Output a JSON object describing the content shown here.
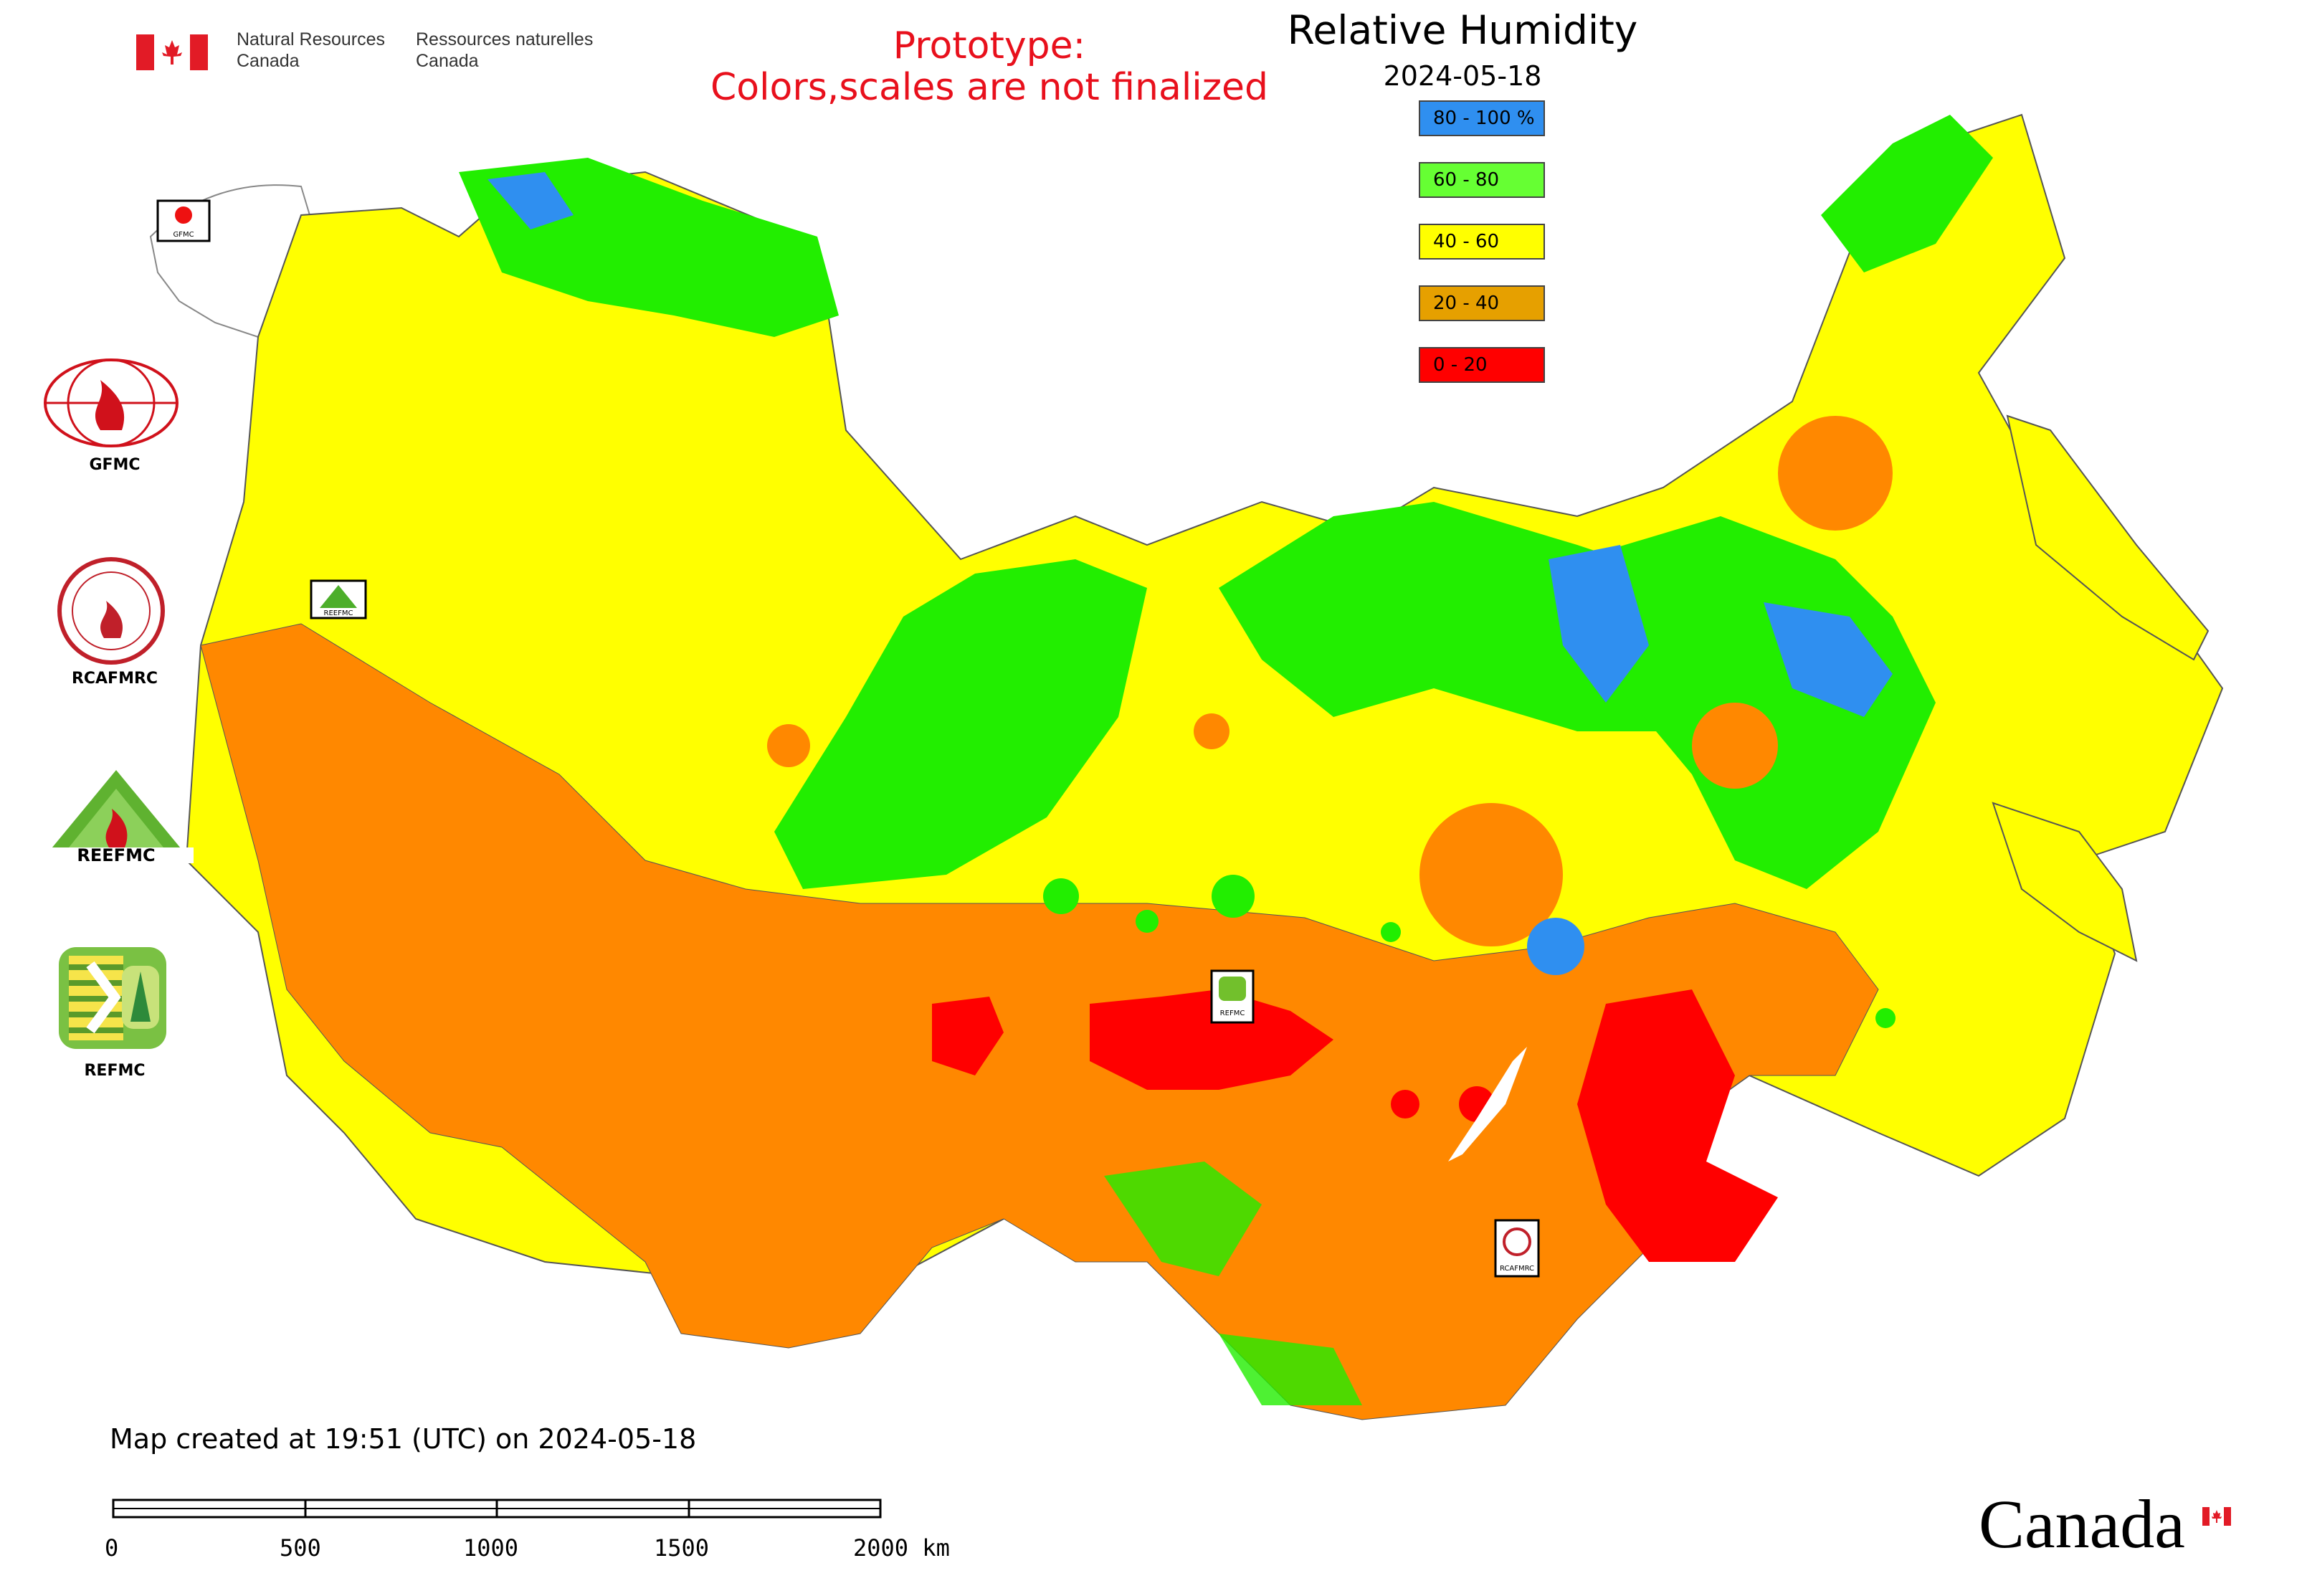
{
  "header": {
    "department_en": [
      "Natural Resources",
      "Canada"
    ],
    "department_fr": [
      "Ressources naturelles",
      "Canada"
    ],
    "prototype_line1": "Prototype:",
    "prototype_line2": "Colors,scales are not finalized"
  },
  "legend": {
    "title": "Relative Humidity",
    "date": "2024-05-18",
    "items": [
      {
        "label": "80 - 100 %",
        "color": "#2f8ff0"
      },
      {
        "label": "60 - 80",
        "color": "#66ff33"
      },
      {
        "label": "40 - 60",
        "color": "#ffff00"
      },
      {
        "label": "20 - 40",
        "color": "#e6a000"
      },
      {
        "label": "0 - 20",
        "color": "#ff0000"
      }
    ]
  },
  "logos": [
    {
      "name": "GFMC"
    },
    {
      "name": "RCAFMRC"
    },
    {
      "name": "REEFMC"
    },
    {
      "name": "REFMC"
    }
  ],
  "map": {
    "colors": {
      "blue": "#2f8ff0",
      "green": "#22ee00",
      "yellow": "#ffff00",
      "orange": "#ff8800",
      "red": "#ff0000"
    },
    "markers": [
      "GFMC",
      "REEFMC",
      "REFMC",
      "RCAFMRC"
    ]
  },
  "footer": {
    "created": "Map created at 19:51 (UTC) on 2024-05-18",
    "scale_labels": [
      "0",
      "500",
      "1000",
      "1500",
      "2000 km"
    ],
    "wordmark": "Canada"
  }
}
